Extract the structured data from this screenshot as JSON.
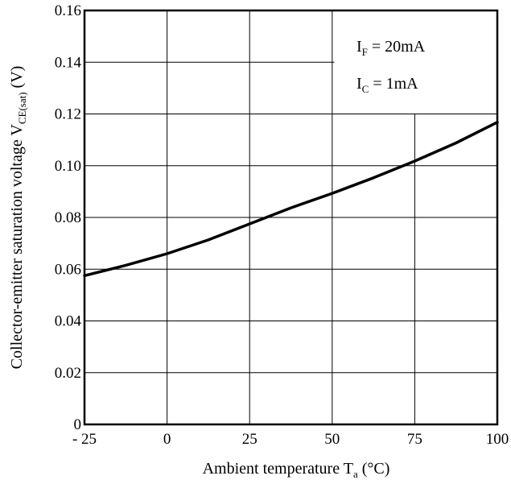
{
  "chart_data": {
    "type": "line",
    "xlabel": {
      "main": "Ambient temperature T",
      "sub": "a",
      "unit": " (°C)"
    },
    "ylabel": {
      "main": "Collector-emitter saturation voltage V",
      "sub": "CE(sat)",
      "unit": " (V)"
    },
    "xlim": [
      -25,
      100
    ],
    "ylim": [
      0,
      0.16
    ],
    "x_ticks": [
      -25,
      0,
      25,
      50,
      75,
      100
    ],
    "x_tick_labels": [
      "- 25",
      "0",
      "25",
      "50",
      "75",
      "100"
    ],
    "y_ticks": [
      0,
      0.02,
      0.04,
      0.06,
      0.08,
      0.1,
      0.12,
      0.14,
      0.16
    ],
    "y_tick_labels": [
      "0",
      "0.02",
      "0.04",
      "0.06",
      "0.08",
      "0.10",
      "0.12",
      "0.14",
      "0.16"
    ],
    "grid": true,
    "annotations": [
      {
        "main": "I",
        "sub": "F",
        "rest": " = 20mA"
      },
      {
        "main": "I",
        "sub": "C",
        "rest": " = 1mA"
      }
    ],
    "series": [
      {
        "color": "#000000",
        "x": [
          -25,
          -12.5,
          0,
          12.5,
          25,
          37.5,
          50,
          62.5,
          75,
          87.5,
          100
        ],
        "y": [
          0.0575,
          0.0615,
          0.066,
          0.0713,
          0.0775,
          0.0837,
          0.0893,
          0.0953,
          0.1018,
          0.1088,
          0.1168
        ]
      }
    ]
  }
}
